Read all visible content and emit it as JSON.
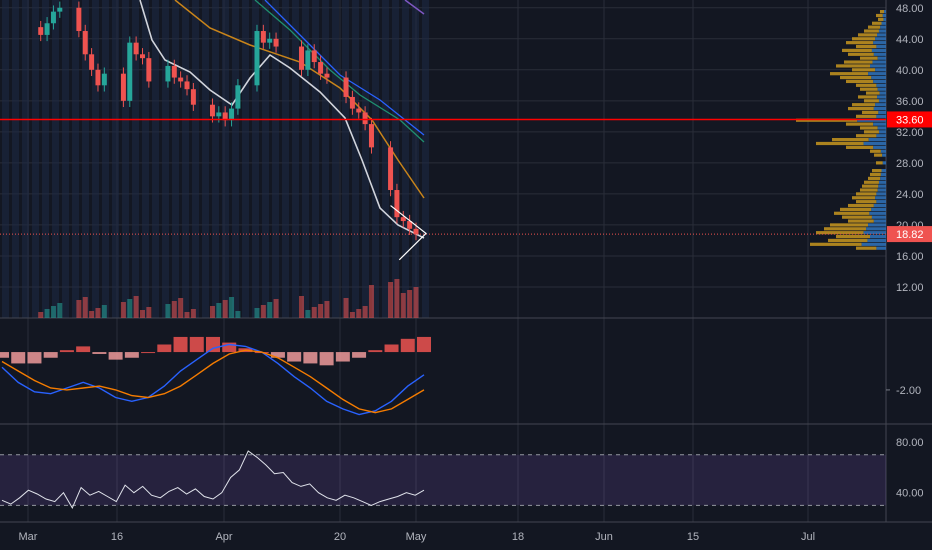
{
  "chart_data": [
    {
      "type": "candlestick",
      "panel": "price",
      "title": "",
      "xlabel": "",
      "ylabel": "",
      "ylim": [
        8,
        49
      ],
      "y_ticks": [
        "48.00",
        "44.00",
        "40.00",
        "36.00",
        "32.00",
        "28.00",
        "24.00",
        "20.00",
        "16.00",
        "12.00"
      ],
      "y_tick_values": [
        48,
        44,
        40,
        36,
        32,
        28,
        24,
        20,
        16,
        12
      ],
      "x_ticks": [
        "Mar",
        "16",
        "Apr",
        "20",
        "May",
        "18",
        "Jun",
        "15",
        "Jul"
      ],
      "x_tick_dates": [
        "2020-03-01",
        "2020-03-16",
        "2020-04-01",
        "2020-04-20",
        "2020-05-01",
        "2020-05-18",
        "2020-06-01",
        "2020-06-15",
        "2020-07-01"
      ],
      "last_price": "18.82",
      "horizontal_level": "33.60",
      "colors": {
        "up": "#26a69a",
        "down": "#ef5350",
        "level": "#ff0000",
        "ma_white": "#d1d4dc",
        "ma_orange": "#c8841a",
        "ma_green": "#1f8f6f",
        "ma_blue": "#2962ff",
        "ma_purple": "#7e57c2",
        "triangle": "#ffffff"
      },
      "close_series": [
        {
          "date": "2020-03-03",
          "close": 44.5
        },
        {
          "date": "2020-03-04",
          "close": 46.0
        },
        {
          "date": "2020-03-05",
          "close": 47.5
        },
        {
          "date": "2020-03-06",
          "close": 48.0
        },
        {
          "date": "2020-03-09",
          "close": 45.0
        },
        {
          "date": "2020-03-10",
          "close": 42.0
        },
        {
          "date": "2020-03-11",
          "close": 40.0
        },
        {
          "date": "2020-03-12",
          "close": 38.0
        },
        {
          "date": "2020-03-13",
          "close": 39.5
        },
        {
          "date": "2020-03-16",
          "close": 36.0
        },
        {
          "date": "2020-03-17",
          "close": 43.5
        },
        {
          "date": "2020-03-18",
          "close": 42.0
        },
        {
          "date": "2020-03-19",
          "close": 41.5
        },
        {
          "date": "2020-03-20",
          "close": 38.5
        },
        {
          "date": "2020-03-23",
          "close": 40.5
        },
        {
          "date": "2020-03-24",
          "close": 39.0
        },
        {
          "date": "2020-03-25",
          "close": 38.5
        },
        {
          "date": "2020-03-26",
          "close": 37.5
        },
        {
          "date": "2020-03-27",
          "close": 35.5
        },
        {
          "date": "2020-03-30",
          "close": 34.0
        },
        {
          "date": "2020-03-31",
          "close": 34.5
        },
        {
          "date": "2020-04-01",
          "close": 33.5
        },
        {
          "date": "2020-04-02",
          "close": 35.0
        },
        {
          "date": "2020-04-03",
          "close": 38.0
        },
        {
          "date": "2020-04-06",
          "close": 45.0
        },
        {
          "date": "2020-04-07",
          "close": 43.5
        },
        {
          "date": "2020-04-08",
          "close": 44.0
        },
        {
          "date": "2020-04-09",
          "close": 43.0
        },
        {
          "date": "2020-04-13",
          "close": 40.0
        },
        {
          "date": "2020-04-14",
          "close": 42.5
        },
        {
          "date": "2020-04-15",
          "close": 41.0
        },
        {
          "date": "2020-04-16",
          "close": 39.5
        },
        {
          "date": "2020-04-17",
          "close": 39.0
        },
        {
          "date": "2020-04-20",
          "close": 36.5
        },
        {
          "date": "2020-04-21",
          "close": 35.0
        },
        {
          "date": "2020-04-22",
          "close": 34.5
        },
        {
          "date": "2020-04-23",
          "close": 33.0
        },
        {
          "date": "2020-04-24",
          "close": 30.0
        },
        {
          "date": "2020-04-27",
          "close": 24.5
        },
        {
          "date": "2020-04-28",
          "close": 21.0
        },
        {
          "date": "2020-04-29",
          "close": 20.5
        },
        {
          "date": "2020-04-30",
          "close": 19.5
        },
        {
          "date": "2020-05-01",
          "close": 18.82
        }
      ],
      "volume_profile_note": "horizontal volume-by-price histogram on right side",
      "indicators": [
        "moving averages",
        "MACD",
        "RSI"
      ]
    },
    {
      "type": "line",
      "panel": "macd",
      "title": "",
      "y_ticks": [
        "-2.00"
      ],
      "y_tick_values": [
        -2
      ],
      "ylim": [
        -3.8,
        1.8
      ],
      "series": [
        {
          "name": "",
          "color": "#2962ff",
          "values": [
            -0.8,
            -1.6,
            -2.1,
            -2.2,
            -1.9,
            -1.6,
            -1.9,
            -2.4,
            -2.6,
            -2.4,
            -1.8,
            -1.0,
            -0.4,
            0.2,
            0.4,
            0.3,
            0.0,
            -0.6,
            -1.3,
            -1.9,
            -2.6,
            -3.0,
            -3.3,
            -3.1,
            -2.6,
            -1.8,
            -1.2
          ]
        },
        {
          "name": "",
          "color": "#f57c00",
          "values": [
            -0.5,
            -1.0,
            -1.5,
            -1.9,
            -2.0,
            -1.9,
            -1.8,
            -2.0,
            -2.3,
            -2.4,
            -2.2,
            -1.8,
            -1.2,
            -0.6,
            -0.1,
            0.1,
            0.0,
            -0.3,
            -0.8,
            -1.3,
            -1.9,
            -2.5,
            -3.0,
            -3.2,
            -3.0,
            -2.5,
            -2.0
          ]
        }
      ],
      "histogram": [
        -0.3,
        -0.6,
        -0.6,
        -0.3,
        0.1,
        0.3,
        -0.1,
        -0.4,
        -0.3,
        0.0,
        0.4,
        0.8,
        0.8,
        0.8,
        0.5,
        0.2,
        0.0,
        -0.3,
        -0.5,
        -0.6,
        -0.7,
        -0.5,
        -0.3,
        0.1,
        0.4,
        0.7,
        0.8
      ]
    },
    {
      "type": "line",
      "panel": "rsi",
      "title": "",
      "y_ticks": [
        "80.00",
        "40.00"
      ],
      "y_tick_values": [
        80,
        40
      ],
      "ylim": [
        20,
        88
      ],
      "bands": [
        70,
        30
      ],
      "series": [
        {
          "name": "",
          "color": "#e0e3eb",
          "values": [
            34,
            31,
            36,
            42,
            39,
            35,
            33,
            40,
            28,
            44,
            38,
            41,
            37,
            33,
            46,
            40,
            45,
            38,
            36,
            41,
            44,
            39,
            43,
            37,
            35,
            40,
            52,
            58,
            73,
            68,
            62,
            55,
            56,
            48,
            45,
            47,
            40,
            36,
            34,
            38,
            36,
            33,
            30,
            33,
            35,
            37,
            40,
            38,
            42
          ]
        }
      ]
    }
  ]
}
